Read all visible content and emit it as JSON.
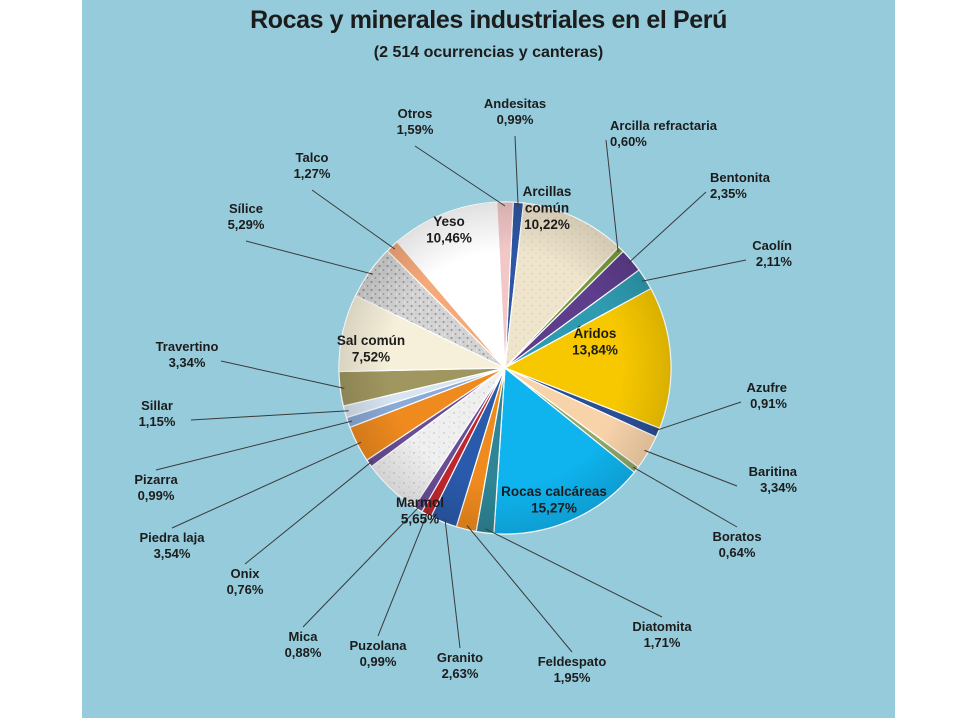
{
  "chart_data": {
    "type": "pie",
    "title": "Rocas y minerales industriales en el Perú",
    "subtitle": "(2 514 ocurrencias y canteras)",
    "slices": [
      {
        "label": "Andesitas",
        "display": "0,99%",
        "value": 0.99,
        "color": "#2d56a3"
      },
      {
        "label": "Arcillas común",
        "display": "10,22%",
        "value": 10.22,
        "color": "#efe4cc"
      },
      {
        "label": "Arcilla refractaria",
        "display": "0,60%",
        "value": 0.6,
        "color": "#7a9a40"
      },
      {
        "label": "Bentonita",
        "display": "2,35%",
        "value": 2.35,
        "color": "#5d3d8c"
      },
      {
        "label": "Caolín",
        "display": "2,11%",
        "value": 2.11,
        "color": "#2f9bb0"
      },
      {
        "label": "Áridos",
        "display": "13,84%",
        "value": 13.84,
        "color": "#f7c800"
      },
      {
        "label": "Azufre",
        "display": "0,91%",
        "value": 0.91,
        "color": "#2b4f96"
      },
      {
        "label": "Baritina",
        "display": "3,34%",
        "value": 3.34,
        "color": "#f8d3aa"
      },
      {
        "label": "Boratos",
        "display": "0,64%",
        "value": 0.64,
        "color": "#8da868"
      },
      {
        "label": "Rocas calcáreas",
        "display": "15,27%",
        "value": 15.27,
        "color": "#0fb4ef"
      },
      {
        "label": "Diatomita",
        "display": "1,71%",
        "value": 1.71,
        "color": "#2e8595"
      },
      {
        "label": "Feldespato",
        "display": "1,95%",
        "value": 1.95,
        "color": "#ef8a1e"
      },
      {
        "label": "Granito",
        "display": "2,63%",
        "value": 2.63,
        "color": "#2a5aab"
      },
      {
        "label": "Puzolana",
        "display": "0,99%",
        "value": 0.99,
        "color": "#c0272d"
      },
      {
        "label": "Mica",
        "display": "0,88%",
        "value": 0.88,
        "color": "#6a4d97"
      },
      {
        "label": "Marmol",
        "display": "5,65%",
        "value": 5.65,
        "color": "#dcdcdc"
      },
      {
        "label": "Onix",
        "display": "0,76%",
        "value": 0.76,
        "color": "#6a4d97"
      },
      {
        "label": "Piedra laja",
        "display": "3,54%",
        "value": 3.54,
        "color": "#ef8a1e"
      },
      {
        "label": "Pizarra",
        "display": "0,99%",
        "value": 0.99,
        "color": "#8aaad8"
      },
      {
        "label": "Sillar",
        "display": "1,15%",
        "value": 1.15,
        "color": "#d8e4f2"
      },
      {
        "label": "Travertino",
        "display": "3,34%",
        "value": 3.34,
        "color": "#a09660"
      },
      {
        "label": "Sal común",
        "display": "7,52%",
        "value": 7.52,
        "color": "#f6f0da"
      },
      {
        "label": "Sílice",
        "display": "5,29%",
        "value": 5.29,
        "color": "#a8a8a8"
      },
      {
        "label": "Talco",
        "display": "1,27%",
        "value": 1.27,
        "color": "#f5a87a"
      },
      {
        "label": "Yeso",
        "display": "10,46%",
        "value": 10.46,
        "color": "#ffffff"
      },
      {
        "label": "Otros",
        "display": "1,59%",
        "value": 1.59,
        "color": "#f2c7c7"
      }
    ]
  }
}
